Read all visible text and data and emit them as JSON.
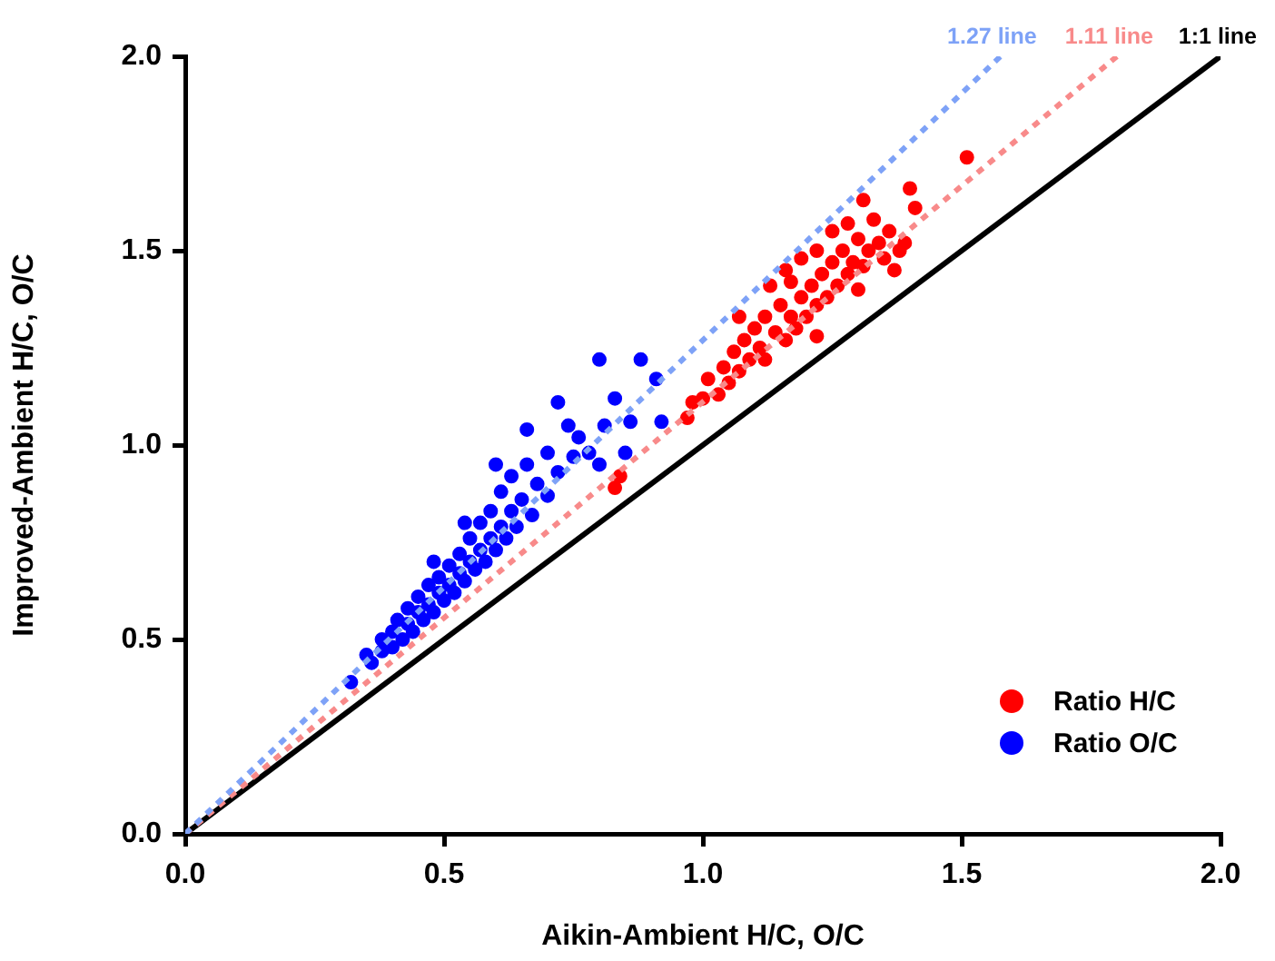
{
  "chart_data": {
    "type": "scatter",
    "xlabel": "Aikin-Ambient H/C, O/C",
    "ylabel": "Improved-Ambient H/C, O/C",
    "xlim": [
      0,
      2
    ],
    "ylim": [
      0,
      2
    ],
    "xticks": [
      {
        "value": 0,
        "label": "0.0"
      },
      0.5,
      {
        "value": 1,
        "label": "1.0"
      },
      1.5,
      {
        "value": 2,
        "label": "2.0"
      }
    ],
    "yticks": [
      {
        "value": 0,
        "label": "0.0"
      },
      0.5,
      {
        "value": 1,
        "label": "1.0"
      },
      1.5,
      {
        "value": 2,
        "label": "2.0"
      }
    ],
    "grid": false,
    "legend": "bottom right",
    "marker": "circle",
    "series": [
      {
        "name": "Ratio H/C",
        "color": "#ff0000",
        "x": [
          0.83,
          0.84,
          0.97,
          0.98,
          1.0,
          1.01,
          1.03,
          1.04,
          1.05,
          1.06,
          1.07,
          1.07,
          1.08,
          1.09,
          1.1,
          1.11,
          1.12,
          1.12,
          1.13,
          1.14,
          1.15,
          1.16,
          1.17,
          1.17,
          1.18,
          1.19,
          1.19,
          1.2,
          1.21,
          1.22,
          1.22,
          1.23,
          1.24,
          1.25,
          1.25,
          1.26,
          1.27,
          1.28,
          1.28,
          1.29,
          1.3,
          1.31,
          1.31,
          1.32,
          1.33,
          1.34,
          1.35,
          1.36,
          1.37,
          1.38,
          1.39,
          1.4,
          1.41,
          1.51,
          1.16,
          1.22,
          1.3
        ],
        "values": [
          0.89,
          0.92,
          1.07,
          1.11,
          1.12,
          1.17,
          1.13,
          1.2,
          1.16,
          1.24,
          1.33,
          1.19,
          1.27,
          1.22,
          1.3,
          1.25,
          1.33,
          1.22,
          1.41,
          1.29,
          1.36,
          1.27,
          1.33,
          1.42,
          1.3,
          1.38,
          1.48,
          1.33,
          1.41,
          1.36,
          1.5,
          1.44,
          1.38,
          1.47,
          1.55,
          1.41,
          1.5,
          1.44,
          1.57,
          1.47,
          1.53,
          1.46,
          1.63,
          1.5,
          1.58,
          1.52,
          1.48,
          1.55,
          1.45,
          1.5,
          1.52,
          1.66,
          1.61,
          1.74,
          1.45,
          1.28,
          1.4
        ]
      },
      {
        "name": "Ratio O/C",
        "color": "#0000ff",
        "x": [
          0.32,
          0.35,
          0.36,
          0.38,
          0.38,
          0.4,
          0.4,
          0.41,
          0.42,
          0.43,
          0.43,
          0.44,
          0.45,
          0.45,
          0.46,
          0.47,
          0.47,
          0.48,
          0.49,
          0.49,
          0.5,
          0.51,
          0.51,
          0.52,
          0.53,
          0.53,
          0.54,
          0.55,
          0.55,
          0.56,
          0.57,
          0.57,
          0.58,
          0.59,
          0.59,
          0.6,
          0.61,
          0.61,
          0.62,
          0.63,
          0.63,
          0.64,
          0.65,
          0.66,
          0.66,
          0.67,
          0.68,
          0.7,
          0.7,
          0.72,
          0.72,
          0.74,
          0.75,
          0.76,
          0.78,
          0.8,
          0.8,
          0.81,
          0.83,
          0.85,
          0.86,
          0.88,
          0.91,
          0.92,
          0.6,
          0.54,
          0.48
        ],
        "values": [
          0.39,
          0.46,
          0.44,
          0.47,
          0.5,
          0.48,
          0.52,
          0.55,
          0.5,
          0.54,
          0.58,
          0.52,
          0.57,
          0.61,
          0.55,
          0.59,
          0.64,
          0.57,
          0.62,
          0.66,
          0.6,
          0.64,
          0.69,
          0.62,
          0.67,
          0.72,
          0.65,
          0.7,
          0.76,
          0.68,
          0.73,
          0.8,
          0.7,
          0.76,
          0.83,
          0.73,
          0.79,
          0.88,
          0.76,
          0.83,
          0.92,
          0.79,
          0.86,
          0.95,
          1.04,
          0.82,
          0.9,
          0.87,
          0.98,
          1.11,
          0.93,
          1.05,
          0.97,
          1.02,
          0.98,
          1.22,
          0.95,
          1.05,
          1.12,
          0.98,
          1.06,
          1.22,
          1.17,
          1.06,
          0.95,
          0.8,
          0.7
        ]
      },
      {
        "name": "1.27 line",
        "color": "#7ea2f7",
        "type": "line",
        "line_style": "dotted",
        "marker": "none",
        "x": [
          0,
          1.575
        ],
        "values": [
          0,
          2.0
        ]
      },
      {
        "name": "1.11 line",
        "color": "#f88a8a",
        "type": "line",
        "line_style": "dotted",
        "marker": "none",
        "x": [
          0,
          1.8
        ],
        "values": [
          0,
          2.0
        ]
      },
      {
        "name": "1:1 line",
        "color": "#000000",
        "type": "line",
        "line_style": "solid",
        "marker": "none",
        "x": [
          0,
          2.0
        ],
        "values": [
          0,
          2.0
        ]
      }
    ]
  }
}
